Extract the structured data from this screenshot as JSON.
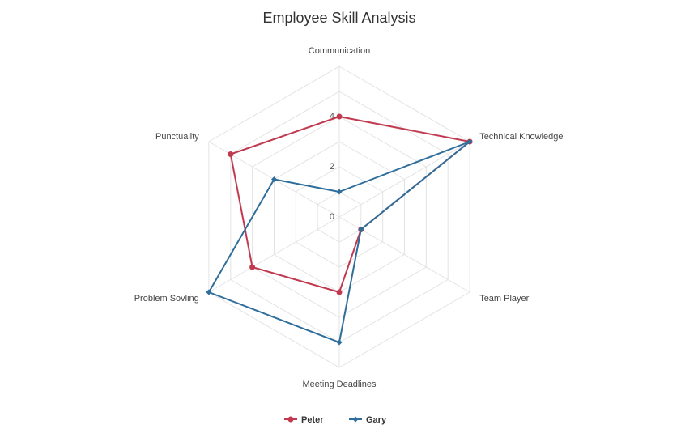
{
  "chart_data": {
    "type": "radar",
    "title": "Employee Skill Analysis",
    "axes": [
      "Communication",
      "Technical Knowledge",
      "Team Player",
      "Meeting Deadlines",
      "Problem Sovling",
      "Punctuality"
    ],
    "radial_ticks": [
      0,
      2,
      4
    ],
    "range": [
      0,
      6
    ],
    "series": [
      {
        "name": "Peter",
        "color": "#c0394f",
        "marker": "circle",
        "values": [
          4,
          6,
          1,
          3,
          4,
          5
        ]
      },
      {
        "name": "Gary",
        "color": "#2f6e9b",
        "marker": "diamond",
        "values": [
          1,
          6,
          1,
          5,
          6,
          3
        ]
      }
    ],
    "legend_position": "bottom-center",
    "grid": true
  }
}
